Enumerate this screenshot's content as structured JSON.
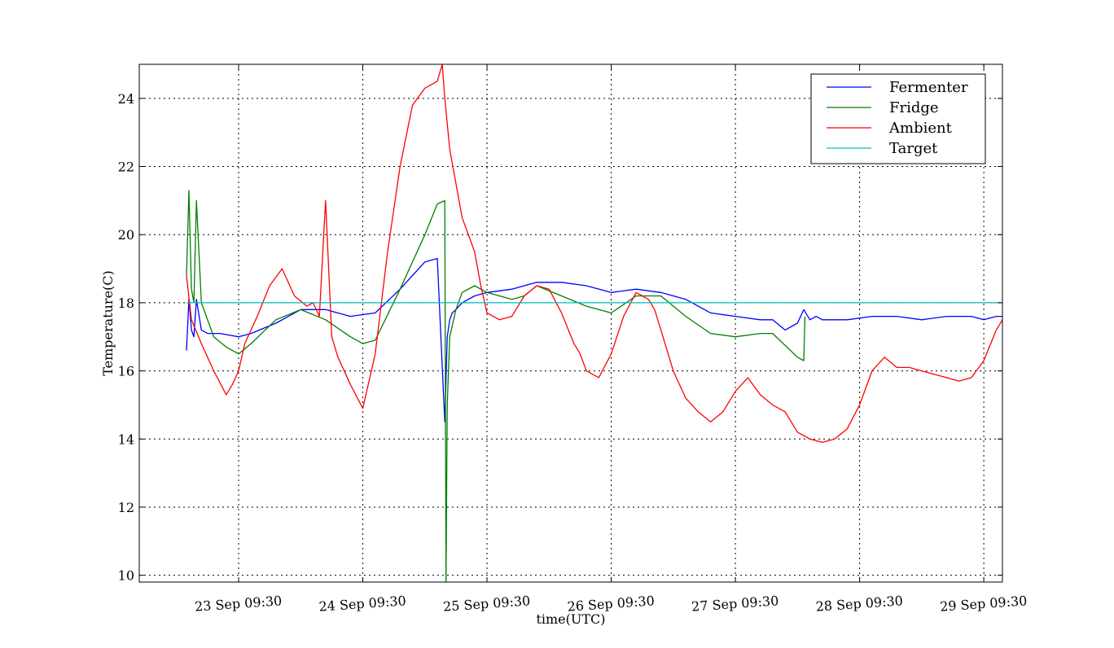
{
  "chart_data": {
    "type": "line",
    "xlabel": "time(UTC)",
    "ylabel": "Temperature(C)",
    "x_ticks": [
      "23 Sep 09:30",
      "24 Sep 09:30",
      "25 Sep 09:30",
      "26 Sep 09:30",
      "27 Sep 09:30",
      "28 Sep 09:30",
      "29 Sep 09:30"
    ],
    "y_ticks": [
      "10",
      "12",
      "14",
      "16",
      "18",
      "20",
      "22",
      "24"
    ],
    "xlim_days": [
      -0.8,
      6.15
    ],
    "ylim": [
      9.8,
      25.0
    ],
    "grid": true,
    "legend_position": "top-right",
    "series": [
      {
        "name": "Fermenter",
        "color": "#0000ff",
        "x": [
          -0.42,
          -0.4,
          -0.38,
          -0.36,
          -0.34,
          -0.3,
          -0.25,
          -0.15,
          0.0,
          0.1,
          0.3,
          0.5,
          0.7,
          0.9,
          1.1,
          1.3,
          1.5,
          1.6,
          1.66,
          1.68,
          1.7,
          1.72,
          1.75,
          1.8,
          1.9,
          2.0,
          2.2,
          2.4,
          2.6,
          2.8,
          3.0,
          3.2,
          3.4,
          3.6,
          3.8,
          4.0,
          4.2,
          4.3,
          4.4,
          4.5,
          4.55,
          4.6,
          4.65,
          4.7,
          4.9,
          5.1,
          5.3,
          5.5,
          5.7,
          5.9,
          6.0,
          6.1,
          6.15
        ],
        "y": [
          16.6,
          18.1,
          17.2,
          17.0,
          18.1,
          17.2,
          17.1,
          17.1,
          17.0,
          17.1,
          17.4,
          17.8,
          17.8,
          17.6,
          17.7,
          18.4,
          19.2,
          19.3,
          14.5,
          17.0,
          17.5,
          17.7,
          17.8,
          18.0,
          18.2,
          18.3,
          18.4,
          18.6,
          18.6,
          18.5,
          18.3,
          18.4,
          18.3,
          18.1,
          17.7,
          17.6,
          17.5,
          17.5,
          17.2,
          17.4,
          17.8,
          17.5,
          17.6,
          17.5,
          17.5,
          17.6,
          17.6,
          17.5,
          17.6,
          17.6,
          17.5,
          17.6,
          17.6
        ]
      },
      {
        "name": "Fridge",
        "color": "#008000",
        "x": [
          -0.42,
          -0.4,
          -0.38,
          -0.36,
          -0.34,
          -0.3,
          -0.2,
          -0.1,
          0.0,
          0.1,
          0.3,
          0.5,
          0.7,
          0.9,
          1.0,
          1.1,
          1.3,
          1.5,
          1.6,
          1.66,
          1.67,
          1.68,
          1.7,
          1.75,
          1.8,
          1.9,
          2.0,
          2.2,
          2.3,
          2.4,
          2.6,
          2.8,
          3.0,
          3.2,
          3.4,
          3.6,
          3.8,
          4.0,
          4.2,
          4.3,
          4.5,
          4.55,
          4.56
        ],
        "y": [
          18.8,
          21.3,
          18.4,
          18.0,
          21.0,
          18.0,
          17.0,
          16.7,
          16.5,
          16.8,
          17.5,
          17.8,
          17.5,
          17.0,
          16.8,
          16.9,
          18.4,
          20.0,
          20.9,
          21.0,
          9.8,
          15.0,
          17.0,
          17.8,
          18.3,
          18.5,
          18.3,
          18.1,
          18.2,
          18.5,
          18.2,
          17.9,
          17.7,
          18.2,
          18.2,
          17.6,
          17.1,
          17.0,
          17.1,
          17.1,
          16.4,
          16.3,
          17.6
        ]
      },
      {
        "name": "Ambient",
        "color": "#ff0000",
        "x": [
          -0.42,
          -0.38,
          -0.3,
          -0.2,
          -0.1,
          -0.05,
          0.0,
          0.05,
          0.15,
          0.25,
          0.35,
          0.45,
          0.55,
          0.6,
          0.65,
          0.7,
          0.75,
          0.8,
          0.9,
          1.0,
          1.1,
          1.2,
          1.3,
          1.4,
          1.5,
          1.6,
          1.64,
          1.66,
          1.7,
          1.8,
          1.9,
          1.95,
          2.0,
          2.1,
          2.2,
          2.3,
          2.4,
          2.5,
          2.6,
          2.7,
          2.75,
          2.8,
          2.9,
          3.0,
          3.1,
          3.2,
          3.3,
          3.35,
          3.4,
          3.5,
          3.6,
          3.7,
          3.8,
          3.9,
          4.0,
          4.1,
          4.2,
          4.3,
          4.4,
          4.5,
          4.55,
          4.6,
          4.7,
          4.8,
          4.9,
          5.0,
          5.1,
          5.2,
          5.3,
          5.4,
          5.5,
          5.6,
          5.7,
          5.8,
          5.9,
          6.0,
          6.1,
          6.15
        ],
        "y": [
          18.8,
          17.5,
          16.8,
          16.0,
          15.3,
          15.6,
          16.0,
          16.8,
          17.6,
          18.5,
          19.0,
          18.2,
          17.9,
          18.0,
          17.6,
          21.0,
          17.0,
          16.4,
          15.6,
          14.9,
          16.5,
          19.5,
          22.0,
          23.8,
          24.3,
          24.5,
          25.0,
          24.0,
          22.5,
          20.5,
          19.5,
          18.5,
          17.7,
          17.5,
          17.6,
          18.2,
          18.5,
          18.4,
          17.7,
          16.8,
          16.5,
          16.0,
          15.8,
          16.5,
          17.6,
          18.3,
          18.1,
          17.8,
          17.2,
          16.0,
          15.2,
          14.8,
          14.5,
          14.8,
          15.4,
          15.8,
          15.3,
          15.0,
          14.8,
          14.2,
          14.1,
          14.0,
          13.9,
          14.0,
          14.3,
          15.0,
          16.0,
          16.4,
          16.1,
          16.1,
          16.0,
          15.9,
          15.8,
          15.7,
          15.8,
          16.3,
          17.2,
          17.5
        ]
      },
      {
        "name": "Target",
        "color": "#00bfbf",
        "x": [
          -0.42,
          6.15
        ],
        "y": [
          18.0,
          18.0
        ]
      }
    ]
  }
}
